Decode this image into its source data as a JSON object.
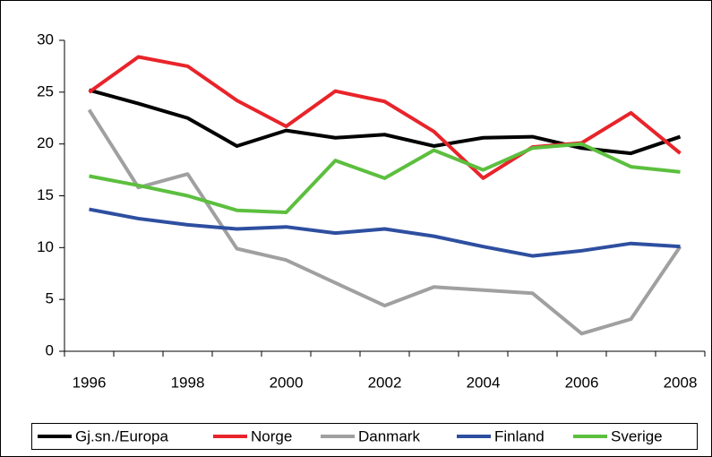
{
  "chart_data": {
    "type": "line",
    "categories": [
      "1996",
      null,
      "1998",
      null,
      "2000",
      null,
      "2002",
      null,
      "2004",
      null,
      "2006",
      null,
      "2008"
    ],
    "ylim": [
      0,
      30
    ],
    "yticks": [
      0,
      5,
      10,
      15,
      20,
      25,
      30
    ],
    "grid": false,
    "legend": "bottom",
    "series": [
      {
        "name": "Gj.sn./Europa",
        "color": "#000000",
        "values": [
          25.2,
          23.9,
          22.5,
          19.8,
          21.3,
          20.6,
          20.9,
          19.8,
          20.6,
          20.7,
          19.6,
          19.1,
          20.7
        ]
      },
      {
        "name": "Norge",
        "color": "#e8242a",
        "values": [
          25.0,
          28.4,
          27.5,
          24.2,
          21.7,
          25.1,
          24.1,
          21.2,
          16.7,
          19.7,
          20.1,
          23.0,
          19.1
        ]
      },
      {
        "name": "Danmark",
        "color": "#a0a0a0",
        "values": [
          23.3,
          15.8,
          17.1,
          9.9,
          8.8,
          6.6,
          4.4,
          6.2,
          5.9,
          5.6,
          1.7,
          3.1,
          10.1
        ]
      },
      {
        "name": "Finland",
        "color": "#2e4fa0",
        "values": [
          13.7,
          12.8,
          12.2,
          11.8,
          12.0,
          11.4,
          11.8,
          11.1,
          10.1,
          9.2,
          9.7,
          10.4,
          10.1
        ]
      },
      {
        "name": "Sverige",
        "color": "#5cbf3e",
        "values": [
          16.9,
          16.0,
          15.0,
          13.6,
          13.4,
          18.4,
          16.7,
          19.4,
          17.5,
          19.6,
          20.0,
          17.8,
          17.3
        ]
      }
    ]
  }
}
